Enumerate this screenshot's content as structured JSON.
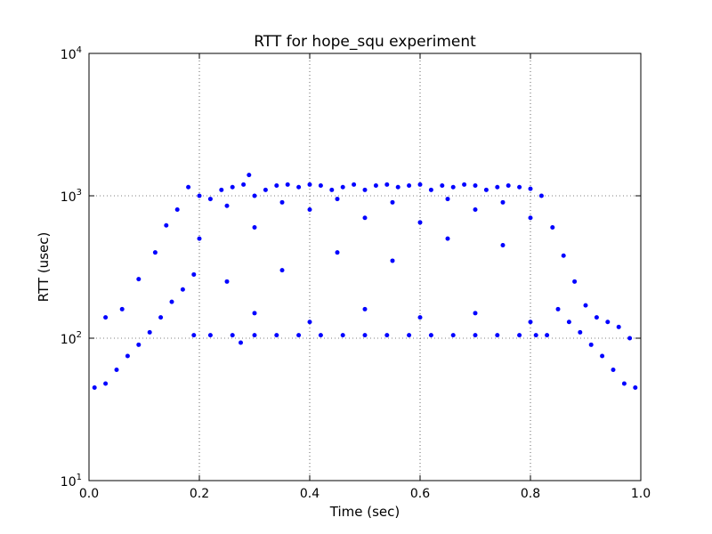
{
  "chart_data": {
    "type": "scatter",
    "title": "RTT for hope_squ experiment",
    "xlabel": "Time (sec)",
    "ylabel": "RTT (usec)",
    "xlim": [
      0.0,
      1.0
    ],
    "ylim": [
      10,
      10000
    ],
    "yscale": "log",
    "grid": true,
    "marker_color": "#0000ff",
    "xticks": [
      {
        "value": 0.0,
        "label": "0.0"
      },
      {
        "value": 0.2,
        "label": "0.2"
      },
      {
        "value": 0.4,
        "label": "0.4"
      },
      {
        "value": 0.6,
        "label": "0.6"
      },
      {
        "value": 0.8,
        "label": "0.8"
      },
      {
        "value": 1.0,
        "label": "1.0"
      }
    ],
    "yticks": [
      {
        "value": 10,
        "mantissa": "10",
        "exponent": "1"
      },
      {
        "value": 100,
        "mantissa": "10",
        "exponent": "2"
      },
      {
        "value": 1000,
        "mantissa": "10",
        "exponent": "3"
      },
      {
        "value": 10000,
        "mantissa": "10",
        "exponent": "4"
      }
    ],
    "points": [
      {
        "x": 0.01,
        "y": 45
      },
      {
        "x": 0.03,
        "y": 48
      },
      {
        "x": 0.05,
        "y": 60
      },
      {
        "x": 0.07,
        "y": 75
      },
      {
        "x": 0.09,
        "y": 90
      },
      {
        "x": 0.11,
        "y": 110
      },
      {
        "x": 0.13,
        "y": 140
      },
      {
        "x": 0.15,
        "y": 180
      },
      {
        "x": 0.17,
        "y": 220
      },
      {
        "x": 0.19,
        "y": 280
      },
      {
        "x": 0.03,
        "y": 140
      },
      {
        "x": 0.06,
        "y": 160
      },
      {
        "x": 0.09,
        "y": 260
      },
      {
        "x": 0.12,
        "y": 400
      },
      {
        "x": 0.14,
        "y": 620
      },
      {
        "x": 0.16,
        "y": 800
      },
      {
        "x": 0.18,
        "y": 1150
      },
      {
        "x": 0.2,
        "y": 1000
      },
      {
        "x": 0.22,
        "y": 950
      },
      {
        "x": 0.24,
        "y": 1100
      },
      {
        "x": 0.26,
        "y": 1150
      },
      {
        "x": 0.28,
        "y": 1200
      },
      {
        "x": 0.29,
        "y": 1400
      },
      {
        "x": 0.3,
        "y": 1000
      },
      {
        "x": 0.32,
        "y": 1100
      },
      {
        "x": 0.34,
        "y": 1180
      },
      {
        "x": 0.36,
        "y": 1200
      },
      {
        "x": 0.38,
        "y": 1150
      },
      {
        "x": 0.4,
        "y": 1200
      },
      {
        "x": 0.42,
        "y": 1180
      },
      {
        "x": 0.44,
        "y": 1100
      },
      {
        "x": 0.46,
        "y": 1150
      },
      {
        "x": 0.48,
        "y": 1200
      },
      {
        "x": 0.5,
        "y": 1100
      },
      {
        "x": 0.52,
        "y": 1180
      },
      {
        "x": 0.54,
        "y": 1200
      },
      {
        "x": 0.56,
        "y": 1150
      },
      {
        "x": 0.58,
        "y": 1180
      },
      {
        "x": 0.6,
        "y": 1200
      },
      {
        "x": 0.62,
        "y": 1100
      },
      {
        "x": 0.64,
        "y": 1180
      },
      {
        "x": 0.66,
        "y": 1150
      },
      {
        "x": 0.68,
        "y": 1200
      },
      {
        "x": 0.7,
        "y": 1180
      },
      {
        "x": 0.72,
        "y": 1100
      },
      {
        "x": 0.74,
        "y": 1150
      },
      {
        "x": 0.76,
        "y": 1180
      },
      {
        "x": 0.78,
        "y": 1150
      },
      {
        "x": 0.8,
        "y": 1120
      },
      {
        "x": 0.82,
        "y": 1000
      },
      {
        "x": 0.84,
        "y": 600
      },
      {
        "x": 0.86,
        "y": 380
      },
      {
        "x": 0.88,
        "y": 250
      },
      {
        "x": 0.9,
        "y": 170
      },
      {
        "x": 0.92,
        "y": 140
      },
      {
        "x": 0.94,
        "y": 130
      },
      {
        "x": 0.96,
        "y": 120
      },
      {
        "x": 0.98,
        "y": 100
      },
      {
        "x": 0.99,
        "y": 45
      },
      {
        "x": 0.97,
        "y": 48
      },
      {
        "x": 0.95,
        "y": 60
      },
      {
        "x": 0.93,
        "y": 75
      },
      {
        "x": 0.91,
        "y": 90
      },
      {
        "x": 0.89,
        "y": 110
      },
      {
        "x": 0.87,
        "y": 130
      },
      {
        "x": 0.85,
        "y": 160
      },
      {
        "x": 0.83,
        "y": 105
      },
      {
        "x": 0.81,
        "y": 105
      },
      {
        "x": 0.78,
        "y": 105
      },
      {
        "x": 0.74,
        "y": 105
      },
      {
        "x": 0.7,
        "y": 105
      },
      {
        "x": 0.66,
        "y": 105
      },
      {
        "x": 0.62,
        "y": 105
      },
      {
        "x": 0.58,
        "y": 105
      },
      {
        "x": 0.54,
        "y": 105
      },
      {
        "x": 0.5,
        "y": 105
      },
      {
        "x": 0.46,
        "y": 105
      },
      {
        "x": 0.42,
        "y": 105
      },
      {
        "x": 0.38,
        "y": 105
      },
      {
        "x": 0.34,
        "y": 105
      },
      {
        "x": 0.3,
        "y": 105
      },
      {
        "x": 0.26,
        "y": 105
      },
      {
        "x": 0.22,
        "y": 105
      },
      {
        "x": 0.19,
        "y": 105
      },
      {
        "x": 0.275,
        "y": 93
      },
      {
        "x": 0.25,
        "y": 250
      },
      {
        "x": 0.35,
        "y": 300
      },
      {
        "x": 0.45,
        "y": 400
      },
      {
        "x": 0.55,
        "y": 350
      },
      {
        "x": 0.65,
        "y": 500
      },
      {
        "x": 0.75,
        "y": 450
      },
      {
        "x": 0.3,
        "y": 600
      },
      {
        "x": 0.4,
        "y": 800
      },
      {
        "x": 0.5,
        "y": 700
      },
      {
        "x": 0.6,
        "y": 650
      },
      {
        "x": 0.7,
        "y": 800
      },
      {
        "x": 0.8,
        "y": 700
      },
      {
        "x": 0.2,
        "y": 500
      },
      {
        "x": 0.25,
        "y": 850
      },
      {
        "x": 0.35,
        "y": 900
      },
      {
        "x": 0.45,
        "y": 950
      },
      {
        "x": 0.55,
        "y": 900
      },
      {
        "x": 0.65,
        "y": 950
      },
      {
        "x": 0.75,
        "y": 900
      },
      {
        "x": 0.3,
        "y": 150
      },
      {
        "x": 0.4,
        "y": 130
      },
      {
        "x": 0.5,
        "y": 160
      },
      {
        "x": 0.6,
        "y": 140
      },
      {
        "x": 0.7,
        "y": 150
      },
      {
        "x": 0.8,
        "y": 130
      }
    ]
  }
}
